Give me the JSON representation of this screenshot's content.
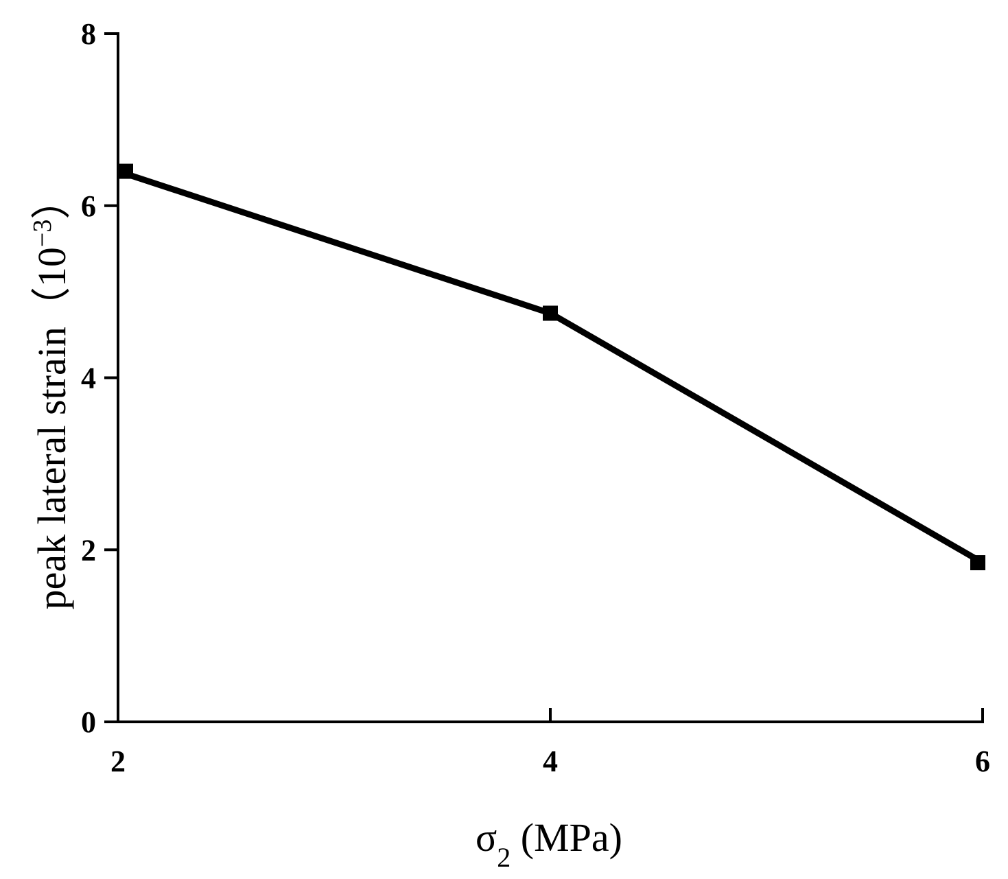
{
  "chart_data": {
    "type": "line",
    "title": "",
    "xlabel": {
      "main": "σ",
      "sub": "2",
      "rest": " (MPa)"
    },
    "ylabel": {
      "main": "peak lateral strain（10",
      "sup": "−3",
      "rest": "）"
    },
    "x": [
      2,
      4,
      6
    ],
    "series": [
      {
        "values": [
          6.4,
          4.75,
          1.85
        ],
        "color": "#000000",
        "marker": "square"
      }
    ],
    "xlim": [
      2,
      6
    ],
    "ylim": [
      0,
      8
    ],
    "xticks": [
      2,
      4,
      6
    ],
    "yticks": [
      0,
      2,
      4,
      6,
      8
    ],
    "xtick_labels": [
      "2",
      "4",
      "6"
    ],
    "ytick_labels": [
      "0",
      "2",
      "4",
      "6",
      "8"
    ],
    "grid": false,
    "legend": "none"
  }
}
